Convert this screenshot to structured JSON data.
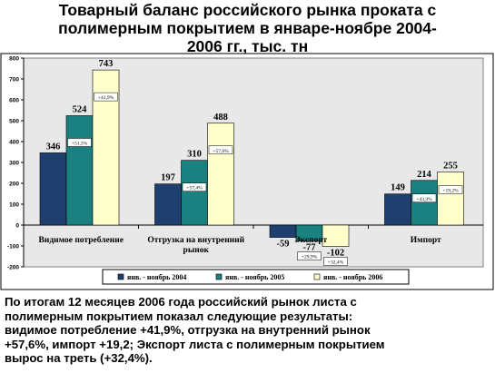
{
  "title_lines": [
    "Товарный баланс российского рынка проката с",
    "полимерным покрытием в январе-ноябре 2004-",
    "2006 гг., тыс. тн"
  ],
  "chart_data": {
    "type": "bar",
    "title": "Товарный баланс российского рынка проката с полимерным покрытием в январе-ноябре 2004-2006 гг., тыс. тн",
    "ylim": [
      -200,
      800
    ],
    "yticks": [
      -200,
      -100,
      0,
      100,
      200,
      300,
      400,
      500,
      600,
      700,
      800
    ],
    "grid": false,
    "legend_position": "bottom",
    "categories": [
      [
        "Видимое потребление"
      ],
      [
        "Отгрузка на внутренний",
        "рынок"
      ],
      [
        "Экспорт"
      ],
      [
        "Импорт"
      ]
    ],
    "series": [
      {
        "name": "янв. - ноябрь 2004",
        "color": "#1F3F6E",
        "values": [
          346,
          197,
          -59,
          149
        ]
      },
      {
        "name": "янв. - ноябрь 2005",
        "color": "#1B8080",
        "values": [
          524,
          310,
          -77,
          214
        ]
      },
      {
        "name": "янв. - ноябрь 2006",
        "color": "#FFFFCC",
        "values": [
          743,
          488,
          -102,
          255
        ]
      }
    ],
    "value_labels": [
      [
        "346",
        "524",
        "743"
      ],
      [
        "197",
        "310",
        "488"
      ],
      [
        "-59",
        "-77",
        "-102"
      ],
      [
        "149",
        "214",
        "255"
      ]
    ],
    "annotations": [
      [
        "+51,3%",
        "+41,9%"
      ],
      [
        "+57,4%",
        "+57,6%"
      ],
      [
        "+29,9%",
        "+32,4%"
      ],
      [
        "+43,3%",
        "+19,2%"
      ]
    ],
    "colors": {
      "plot_background": "#E8E8E8",
      "axis": "#000000"
    }
  },
  "summary_lines": [
    "По итогам 12 месяцев 2006 года российский рынок листа с",
    "полимерным покрытием показал следующие результаты:",
    "видимое потребление   +41,9%, отгрузка на внутренний рынок",
    "+57,6%,  импорт  +19,2;  Экспорт листа с полимерным покрытием",
    "вырос на треть (+32,4%)."
  ]
}
